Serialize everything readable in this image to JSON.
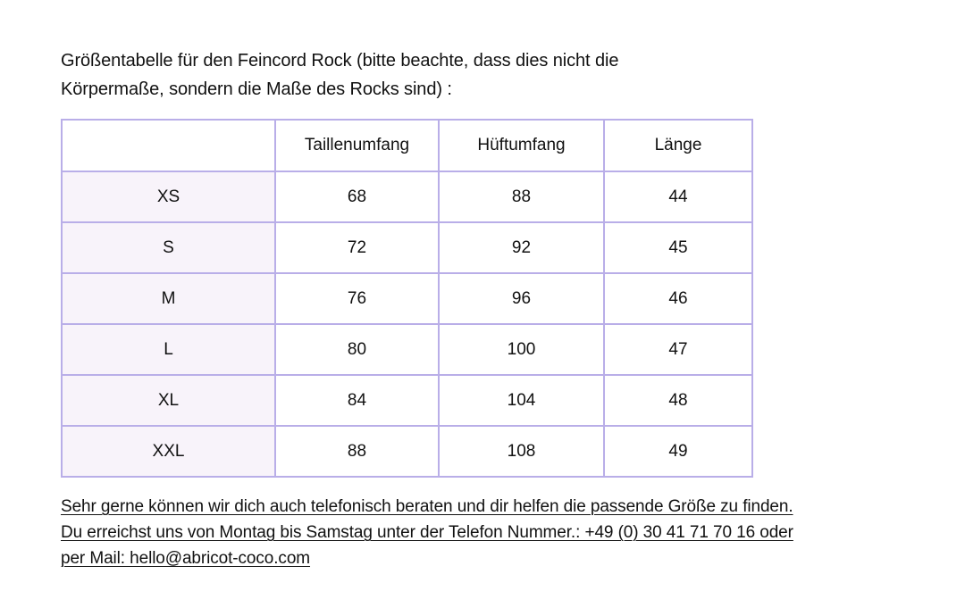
{
  "title": {
    "lines": [
      "Größentabelle für den Feincord Rock (bitte beachte, dass dies nicht die",
      "Körpermaße, sondern die Maße des Rocks sind) :"
    ]
  },
  "table": {
    "headers": [
      "",
      "Taillenumfang",
      "Hüftumfang",
      "Länge"
    ],
    "rows": [
      {
        "size": "XS",
        "waist": "68",
        "hip": "88",
        "length": "44"
      },
      {
        "size": "S",
        "waist": "72",
        "hip": "92",
        "length": "45"
      },
      {
        "size": "M",
        "waist": "76",
        "hip": "96",
        "length": "46"
      },
      {
        "size": "L",
        "waist": "80",
        "hip": "100",
        "length": "47"
      },
      {
        "size": "XL",
        "waist": "84",
        "hip": "104",
        "length": "48"
      },
      {
        "size": "XXL",
        "waist": "88",
        "hip": "108",
        "length": "49"
      }
    ]
  },
  "footer": {
    "lines": [
      "Sehr gerne können wir dich auch telefonisch beraten und dir helfen die passende Größe zu finden.",
      "Du erreichst uns von Montag bis Samstag unter der Telefon Nummer.: +49 (0) 30 41 71 70 16 oder",
      "per Mail: hello@abricot-coco.com"
    ],
    "phone": "+49 (0) 30 41 71 70 16",
    "email": "hello@abricot-coco.com"
  },
  "colors": {
    "table_border": "#b9aee8",
    "size_column_bg": "#f8f3fa",
    "text": "#111111",
    "background": "#ffffff"
  }
}
